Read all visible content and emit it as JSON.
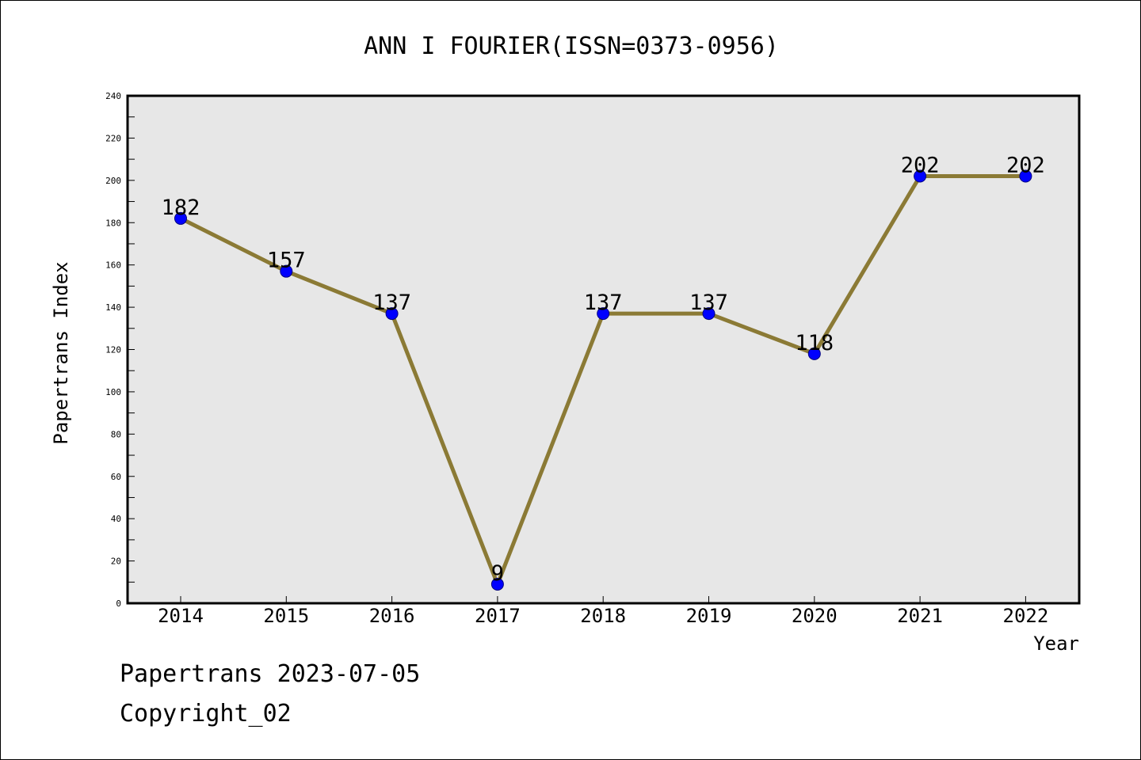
{
  "chart_data": {
    "type": "line",
    "title": "ANN I FOURIER(ISSN=0373-0956)",
    "xlabel": "Year",
    "ylabel": "Papertrans Index",
    "categories": [
      "2014",
      "2015",
      "2016",
      "2017",
      "2018",
      "2019",
      "2020",
      "2021",
      "2022"
    ],
    "values": [
      182,
      157,
      137,
      9,
      137,
      137,
      118,
      202,
      202
    ],
    "data_labels": [
      "182",
      "157",
      "137",
      "9",
      "137",
      "137",
      "118",
      "202",
      "202"
    ],
    "yticks": [
      "0",
      "20",
      "40",
      "60",
      "80",
      "100",
      "120",
      "140",
      "160",
      "180",
      "200",
      "220",
      "240"
    ],
    "ylim": [
      0,
      240
    ],
    "grid": false,
    "legend": "none",
    "colors": {
      "line": "#8B7A35",
      "marker_fill": "#0000FF",
      "marker_edge": "#000080",
      "plot_background": "#E7E7E7",
      "frame": "#000000"
    }
  },
  "footer": {
    "line1": "Papertrans 2023-07-05",
    "line2": "Copyright_02"
  }
}
